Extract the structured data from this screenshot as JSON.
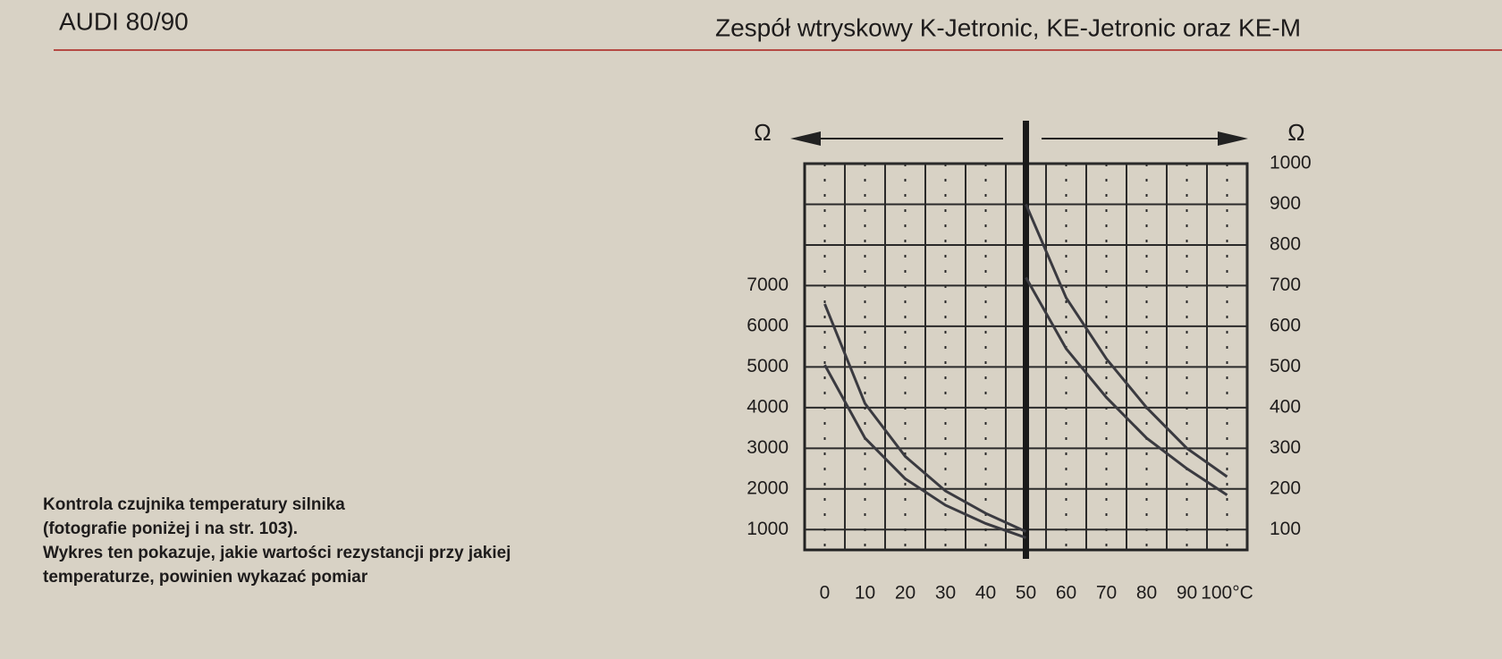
{
  "header": {
    "left": "AUDI 80/90",
    "right": "Zespół wtryskowy K-Jetronic, KE-Jetronic oraz KE-M"
  },
  "caption": [
    "Kontrola czujnika temperatury silnika",
    "(fotografie poniżej i na str. 103).",
    "Wykres ten pokazuje, jakie wartości rezystancji przy jakiej",
    "temperaturze, powinien wykazać pomiar"
  ],
  "chart_data": {
    "type": "line",
    "ylabel": "Ω",
    "y2label": "Ω",
    "xlim": [
      -5,
      105
    ],
    "xticks": [
      0,
      10,
      20,
      30,
      40,
      50,
      60,
      70,
      80,
      90,
      {
        "value": 100,
        "label": "100°C"
      }
    ],
    "ylim": [
      500,
      10000
    ],
    "yticks": [
      1000,
      2000,
      3000,
      4000,
      5000,
      6000,
      7000
    ],
    "y2lim": [
      50,
      1000
    ],
    "y2ticks": [
      100,
      200,
      300,
      400,
      500,
      600,
      700,
      800,
      900,
      1000
    ],
    "grid": true,
    "series": [
      {
        "color": "#3a3a40",
        "x": [
          0,
          10,
          20,
          30,
          40,
          50
        ],
        "values": [
          6550,
          4100,
          2800,
          1950,
          1400,
          950
        ]
      },
      {
        "color": "#3a3a40",
        "x": [
          0,
          10,
          20,
          30,
          40,
          50
        ],
        "values": [
          5050,
          3250,
          2250,
          1600,
          1150,
          800
        ]
      },
      {
        "color": "#3a3a40",
        "axis": "y2",
        "x": [
          50,
          60,
          70,
          80,
          90,
          100
        ],
        "values": [
          900,
          670,
          520,
          400,
          300,
          230
        ]
      },
      {
        "color": "#3a3a40",
        "axis": "y2",
        "x": [
          50,
          60,
          70,
          80,
          90,
          100
        ],
        "values": [
          720,
          545,
          425,
          325,
          250,
          185
        ]
      }
    ]
  }
}
